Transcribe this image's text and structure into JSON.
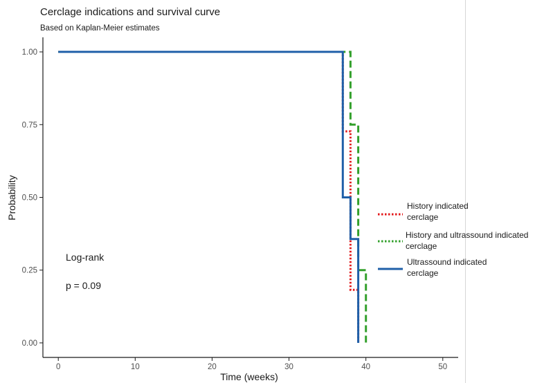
{
  "chart_data": {
    "type": "line",
    "title": "Cerclage indications and survival curve",
    "subtitle": "Based on Kaplan-Meier estimates",
    "xlabel": "Time (weeks)",
    "ylabel": "Probability",
    "xlim": [
      -2,
      52
    ],
    "ylim": [
      -0.05,
      1.05
    ],
    "xticks": [
      0,
      10,
      20,
      30,
      40,
      50
    ],
    "yticks": [
      0.0,
      0.25,
      0.5,
      0.75,
      1.0
    ],
    "ytick_labels": [
      "0.00",
      "0.25",
      "0.50",
      "0.75",
      "1.00"
    ],
    "grid": false,
    "legend_position": "right",
    "annotations": [
      "Log-rank",
      "p = 0.09"
    ],
    "series": [
      {
        "name": "History indicated cerclage",
        "color": "#e31a1c",
        "style": "dotted",
        "x": [
          0,
          37,
          37,
          38,
          38,
          39,
          39
        ],
        "y": [
          1.0,
          1.0,
          0.727,
          0.727,
          0.182,
          0.182,
          0.0
        ]
      },
      {
        "name": "History and ultrassound indicated cerclage",
        "color": "#33a02c",
        "style": "dashed",
        "x": [
          0,
          38,
          38,
          39,
          39,
          40,
          40
        ],
        "y": [
          1.0,
          1.0,
          0.75,
          0.75,
          0.25,
          0.25,
          0.0
        ]
      },
      {
        "name": "Ultrassound indicated cerclage",
        "color": "#1f5fa8",
        "style": "solid",
        "x": [
          0,
          37,
          37,
          38,
          38,
          39,
          39
        ],
        "y": [
          1.0,
          1.0,
          0.5,
          0.5,
          0.357,
          0.357,
          0.0
        ]
      }
    ]
  },
  "legend": {
    "items": [
      {
        "line1": "History indicated",
        "line2": "cerclage"
      },
      {
        "line1": "History and ultrassound indicated",
        "line2": "cerclage"
      },
      {
        "line1": "Ultrassound indicated",
        "line2": "cerclage"
      }
    ]
  }
}
